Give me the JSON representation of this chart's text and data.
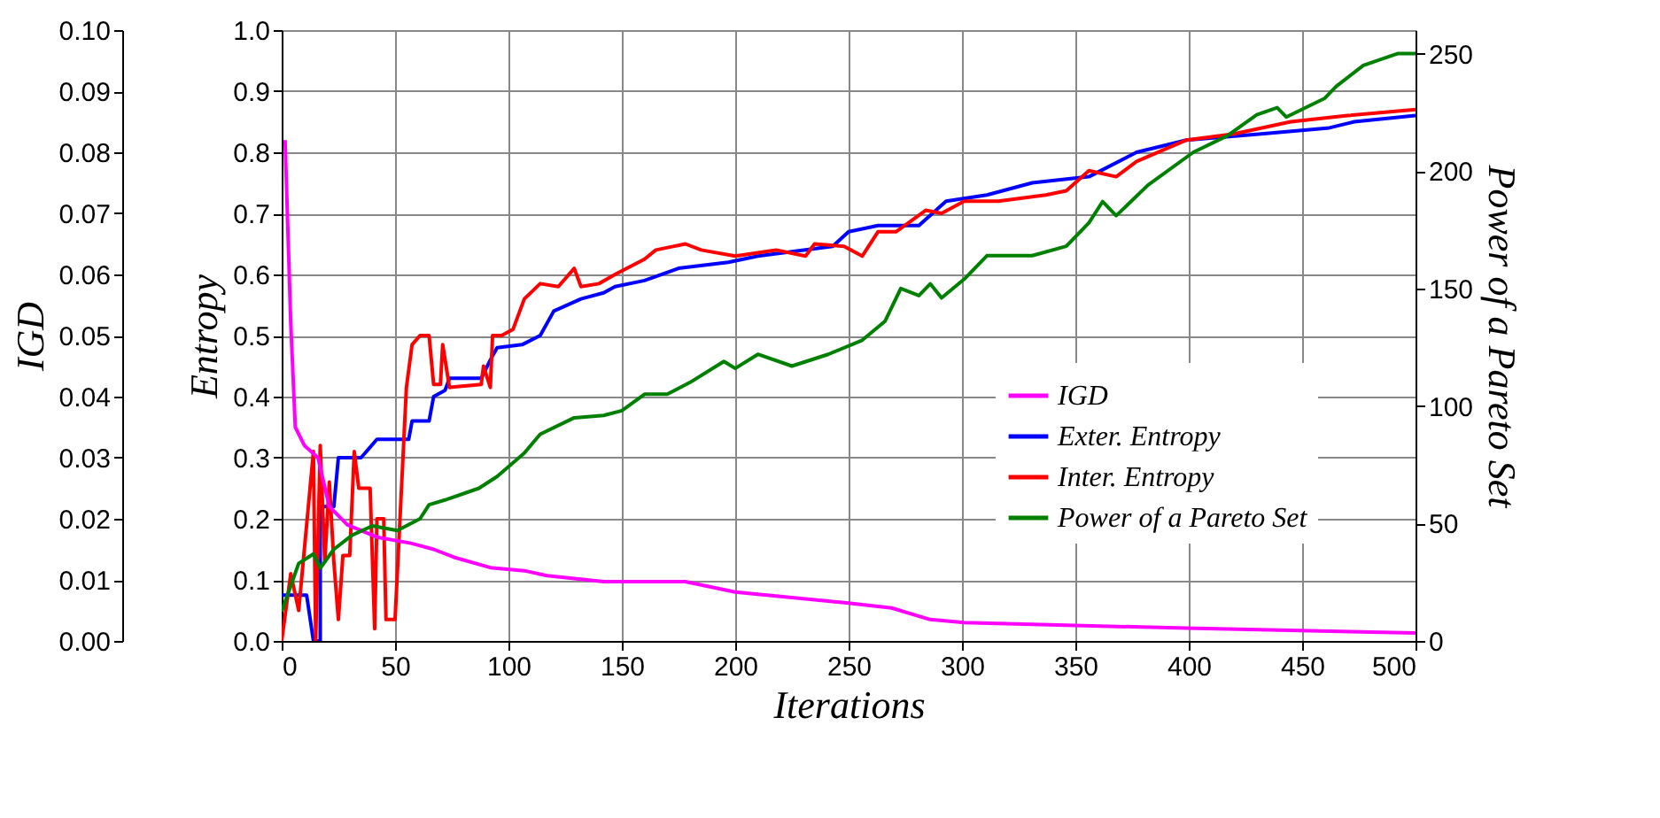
{
  "chart_data": {
    "type": "line",
    "xlabel": "Iterations",
    "ylabel": "Entropy",
    "y2label": "Power of a Pareto Set",
    "y3label": "IGD",
    "xlim": [
      0,
      500
    ],
    "xticks": [
      0,
      50,
      100,
      150,
      200,
      250,
      300,
      350,
      400,
      450,
      500
    ],
    "ylim": [
      0,
      1
    ],
    "yticks": [
      {
        "value": 0,
        "label": "0.0"
      },
      {
        "value": 0.1,
        "label": "0.1"
      },
      {
        "value": 0.2,
        "label": "0.2"
      },
      {
        "value": 0.3,
        "label": "0.3"
      },
      {
        "value": 0.4,
        "label": "0.4"
      },
      {
        "value": 0.5,
        "label": "0.5"
      },
      {
        "value": 0.6,
        "label": "0.6"
      },
      {
        "value": 0.7,
        "label": "0.7"
      },
      {
        "value": 0.8,
        "label": "0.8"
      },
      {
        "value": 0.9,
        "label": "0.9"
      },
      {
        "value": 1,
        "label": "1.0"
      }
    ],
    "y2lim": [
      0,
      260
    ],
    "y2ticks": [
      0,
      50,
      100,
      150,
      200,
      250
    ],
    "y3lim": [
      0,
      0.1
    ],
    "y3ticks": [
      {
        "value": 0,
        "label": "0.00"
      },
      {
        "value": 0.01,
        "label": "0.01"
      },
      {
        "value": 0.02,
        "label": "0.02"
      },
      {
        "value": 0.03,
        "label": "0.03"
      },
      {
        "value": 0.04,
        "label": "0.04"
      },
      {
        "value": 0.05,
        "label": "0.05"
      },
      {
        "value": 0.06,
        "label": "0.06"
      },
      {
        "value": 0.07,
        "label": "0.07"
      },
      {
        "value": 0.08,
        "label": "0.08"
      },
      {
        "value": 0.09,
        "label": "0.09"
      },
      {
        "value": 0.1,
        "label": "0.10"
      }
    ],
    "grid": true,
    "legend": "bottom right",
    "series": [
      {
        "name": "IGD",
        "color": "#ff00ff",
        "axis": "y3",
        "x": [
          1.5,
          4,
          6,
          10,
          16,
          21,
          29,
          42,
          57,
          67,
          76,
          92,
          107,
          117,
          142,
          178,
          200,
          250,
          269,
          286,
          301,
          331,
          399,
          500
        ],
        "values": [
          0.082,
          0.052,
          0.035,
          0.032,
          0.03,
          0.022,
          0.019,
          0.017,
          0.016,
          0.015,
          0.0137,
          0.012,
          0.0115,
          0.0107,
          0.0097,
          0.0097,
          0.008,
          0.0062,
          0.0054,
          0.0035,
          0.003,
          0.0027,
          0.0021,
          0.0013
        ]
      },
      {
        "name": "Exter. Entropy",
        "color": "#0000ff",
        "axis": "y",
        "x": [
          0,
          11,
          14,
          17,
          17,
          23,
          25,
          35,
          42,
          56,
          57.5,
          65,
          67,
          72,
          74,
          88,
          92,
          95,
          106,
          114,
          120,
          132,
          142,
          147,
          160,
          175,
          197,
          210,
          243,
          250,
          263,
          281,
          293,
          311,
          331,
          356,
          377,
          399,
          432,
          462,
          473,
          500
        ],
        "values": [
          0.075,
          0.075,
          0.0,
          0.0,
          0.22,
          0.22,
          0.3,
          0.3,
          0.33,
          0.33,
          0.36,
          0.36,
          0.4,
          0.41,
          0.43,
          0.43,
          0.46,
          0.48,
          0.485,
          0.5,
          0.54,
          0.56,
          0.57,
          0.58,
          0.59,
          0.61,
          0.62,
          0.63,
          0.646,
          0.67,
          0.68,
          0.68,
          0.72,
          0.73,
          0.75,
          0.76,
          0.8,
          0.82,
          0.83,
          0.84,
          0.85,
          0.86
        ]
      },
      {
        "name": "Inter. Entropy",
        "color": "#ff0000",
        "axis": "y",
        "x": [
          0,
          4,
          7.5,
          14,
          15,
          17,
          19,
          21,
          23,
          25,
          27,
          30,
          32,
          34,
          39,
          41,
          42,
          45,
          46,
          50,
          55,
          57.5,
          61,
          65,
          67,
          70,
          71,
          74,
          88,
          89,
          92,
          93,
          97,
          102,
          107,
          114,
          122,
          129,
          132,
          140,
          147,
          160,
          165,
          178,
          185,
          200,
          218,
          231,
          235,
          248,
          256,
          263,
          271,
          284,
          291,
          301,
          316,
          337,
          346,
          356,
          368,
          377,
          399,
          420,
          445,
          470,
          500
        ],
        "values": [
          0.0,
          0.11,
          0.05,
          0.31,
          0.0,
          0.32,
          0.13,
          0.26,
          0.13,
          0.035,
          0.14,
          0.14,
          0.31,
          0.25,
          0.25,
          0.02,
          0.2,
          0.2,
          0.035,
          0.035,
          0.415,
          0.485,
          0.5,
          0.5,
          0.42,
          0.42,
          0.485,
          0.415,
          0.42,
          0.45,
          0.415,
          0.5,
          0.5,
          0.51,
          0.56,
          0.585,
          0.58,
          0.61,
          0.58,
          0.585,
          0.6,
          0.625,
          0.64,
          0.65,
          0.64,
          0.63,
          0.64,
          0.63,
          0.65,
          0.646,
          0.63,
          0.67,
          0.67,
          0.705,
          0.7,
          0.72,
          0.72,
          0.73,
          0.737,
          0.77,
          0.76,
          0.785,
          0.82,
          0.83,
          0.85,
          0.86,
          0.87
        ]
      },
      {
        "name": "Power of a Pareto Set",
        "color": "#008000",
        "axis": "y2",
        "x": [
          0,
          7.5,
          14,
          17,
          23,
          31,
          40,
          51,
          61,
          65,
          72,
          87,
          95,
          107,
          114,
          129,
          142,
          150,
          160,
          170,
          180,
          195,
          200,
          210,
          225,
          241,
          256,
          266,
          273,
          281,
          286,
          291,
          301,
          311,
          331,
          346,
          356,
          362,
          368,
          382,
          402,
          417,
          430,
          439,
          443,
          460,
          465,
          477,
          492,
          500
        ],
        "values": [
          12.5,
          33,
          37,
          31,
          39,
          45,
          49,
          47,
          52,
          58,
          60,
          65,
          70,
          80,
          88,
          95,
          96,
          98,
          105,
          105,
          110,
          119,
          116,
          122,
          117,
          122,
          128,
          136,
          150,
          147,
          152,
          146,
          154,
          164,
          164,
          168,
          178,
          187,
          181,
          194,
          208,
          215,
          224,
          227,
          223,
          231,
          236,
          245,
          250,
          250
        ]
      }
    ]
  }
}
